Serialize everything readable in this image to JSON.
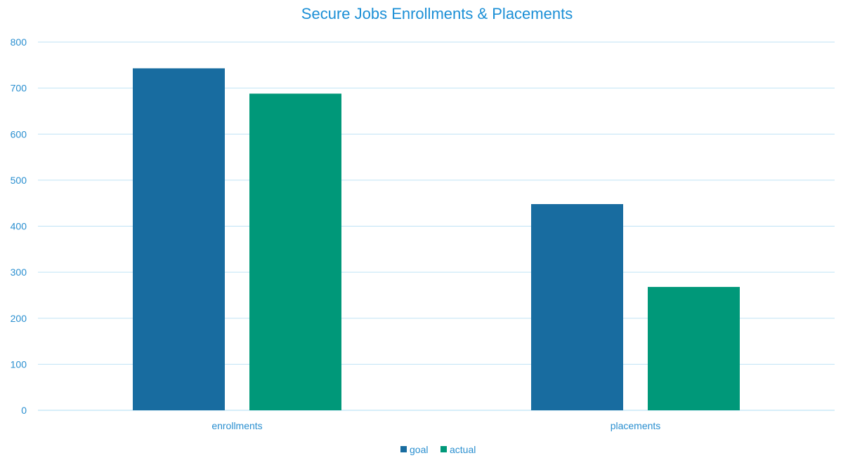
{
  "chart_data": {
    "type": "bar",
    "title": "Secure Jobs Enrollments & Placements",
    "xlabel": "",
    "ylabel": "",
    "categories": [
      "enrollments",
      "placements"
    ],
    "series": [
      {
        "name": "goal",
        "values": [
          743,
          448
        ],
        "color": "#186ca0"
      },
      {
        "name": "actual",
        "values": [
          688,
          268
        ],
        "color": "#009879"
      }
    ],
    "ylim": [
      0,
      800
    ],
    "yticks": [
      "0",
      "100",
      "200",
      "300",
      "400",
      "500",
      "600",
      "700",
      "800"
    ],
    "grid": true,
    "legend_position": "bottom"
  },
  "colors": {
    "text": "#2a8fd0",
    "title": "#1b8fd6",
    "grid": "#bfe3f5"
  }
}
